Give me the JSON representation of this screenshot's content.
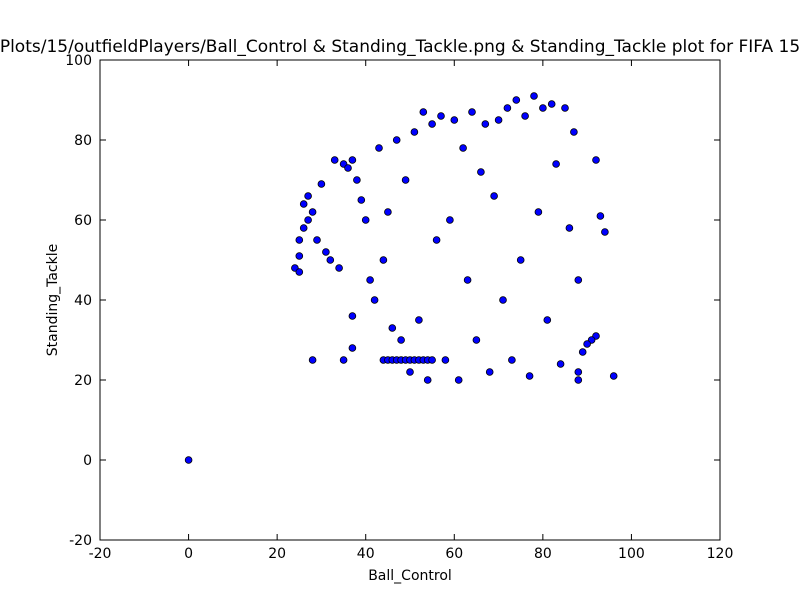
{
  "chart_data": {
    "type": "scatter",
    "title": "Plots/15/outfieldPlayers/Ball_Control & Standing_Tackle.png & Standing_Tackle plot for FIFA 15",
    "xlabel": "Ball_Control",
    "ylabel": "Standing_Tackle",
    "xlim": [
      -20,
      120
    ],
    "ylim": [
      -20,
      100
    ],
    "xticks": [
      -20,
      0,
      20,
      40,
      60,
      80,
      100,
      120
    ],
    "yticks": [
      -20,
      0,
      20,
      40,
      60,
      80,
      100
    ],
    "grid": false,
    "marker_color": "#0000ff",
    "edge_color": "#000000",
    "series": [
      {
        "points": [
          [
            0,
            0
          ],
          [
            96,
            21
          ],
          [
            94,
            57
          ],
          [
            93,
            61
          ],
          [
            92,
            75
          ],
          [
            92,
            31
          ],
          [
            91,
            30
          ],
          [
            90,
            29
          ],
          [
            89,
            27
          ],
          [
            88,
            45
          ],
          [
            88,
            22
          ],
          [
            88,
            20
          ],
          [
            28,
            25
          ],
          [
            35,
            25
          ],
          [
            37,
            28
          ],
          [
            37,
            36
          ],
          [
            24,
            48
          ],
          [
            25,
            47
          ],
          [
            25,
            51
          ],
          [
            25,
            55
          ],
          [
            26,
            58
          ],
          [
            26,
            64
          ],
          [
            27,
            66
          ],
          [
            27,
            60
          ],
          [
            28,
            62
          ],
          [
            29,
            55
          ],
          [
            30,
            69
          ],
          [
            31,
            52
          ],
          [
            32,
            50
          ],
          [
            33,
            75
          ],
          [
            34,
            48
          ],
          [
            35,
            74
          ],
          [
            36,
            73
          ],
          [
            37,
            75
          ],
          [
            38,
            70
          ],
          [
            39,
            65
          ],
          [
            40,
            60
          ],
          [
            41,
            45
          ],
          [
            42,
            40
          ],
          [
            43,
            78
          ],
          [
            44,
            50
          ],
          [
            45,
            62
          ],
          [
            46,
            33
          ],
          [
            47,
            80
          ],
          [
            48,
            30
          ],
          [
            49,
            70
          ],
          [
            50,
            22
          ],
          [
            51,
            82
          ],
          [
            52,
            35
          ],
          [
            53,
            87
          ],
          [
            54,
            20
          ],
          [
            55,
            84
          ],
          [
            56,
            55
          ],
          [
            57,
            86
          ],
          [
            58,
            25
          ],
          [
            59,
            60
          ],
          [
            60,
            85
          ],
          [
            61,
            20
          ],
          [
            62,
            78
          ],
          [
            63,
            45
          ],
          [
            64,
            87
          ],
          [
            65,
            30
          ],
          [
            66,
            72
          ],
          [
            67,
            84
          ],
          [
            68,
            22
          ],
          [
            69,
            66
          ],
          [
            70,
            85
          ],
          [
            71,
            40
          ],
          [
            72,
            88
          ],
          [
            73,
            25
          ],
          [
            74,
            90
          ],
          [
            75,
            50
          ],
          [
            76,
            86
          ],
          [
            77,
            21
          ],
          [
            78,
            91
          ],
          [
            79,
            62
          ],
          [
            80,
            88
          ],
          [
            81,
            35
          ],
          [
            82,
            89
          ],
          [
            83,
            74
          ],
          [
            84,
            24
          ],
          [
            85,
            88
          ],
          [
            86,
            58
          ],
          [
            87,
            82
          ],
          [
            44,
            25
          ],
          [
            45,
            25
          ],
          [
            46,
            25
          ],
          [
            47,
            25
          ],
          [
            48,
            25
          ],
          [
            49,
            25
          ],
          [
            50,
            25
          ],
          [
            51,
            25
          ],
          [
            52,
            25
          ],
          [
            53,
            25
          ],
          [
            54,
            25
          ],
          [
            55,
            25
          ]
        ]
      }
    ]
  }
}
